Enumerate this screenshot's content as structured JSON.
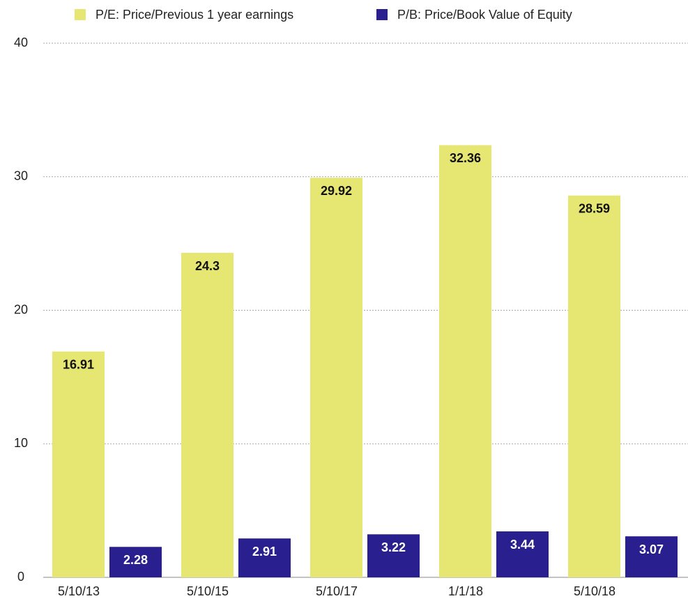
{
  "chart_data": {
    "type": "bar",
    "categories": [
      "5/10/13",
      "5/10/15",
      "5/10/17",
      "1/1/18",
      "5/10/18"
    ],
    "series": [
      {
        "name": "P/E: Price/Previous 1 year earnings",
        "color": "#e6e673",
        "values": [
          16.91,
          24.3,
          29.92,
          32.36,
          28.59
        ]
      },
      {
        "name": "P/B: Price/Book Value of Equity",
        "color": "#2a1f8f",
        "values": [
          2.28,
          2.91,
          3.22,
          3.44,
          3.07
        ]
      }
    ],
    "ylim": [
      0,
      40
    ],
    "yticks": [
      0,
      10,
      20,
      30,
      40
    ],
    "grid": true,
    "legend": "top"
  }
}
